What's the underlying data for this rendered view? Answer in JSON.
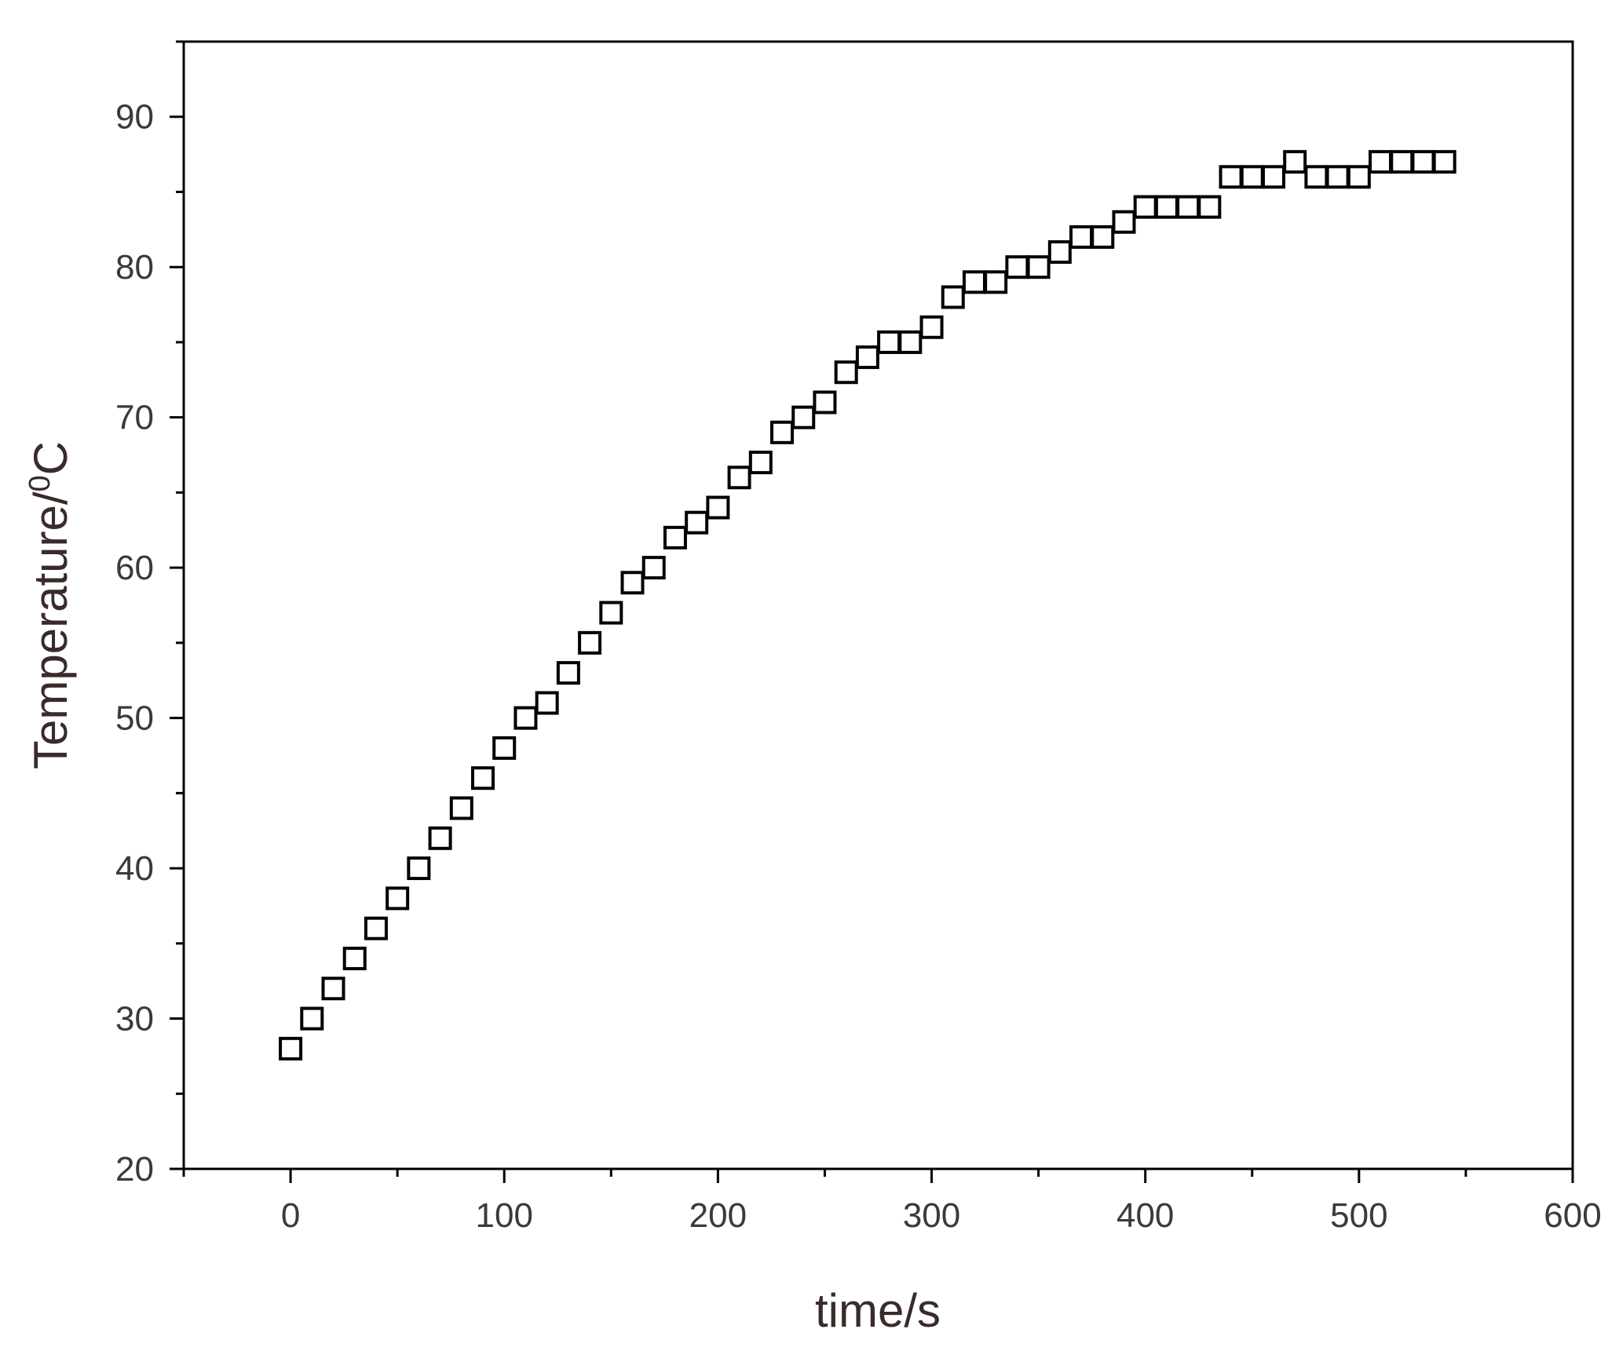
{
  "chart_data": {
    "type": "scatter",
    "xlabel": "time/s",
    "ylabel": {
      "main": "Temperature/",
      "superscript": "0",
      "unit": "C"
    },
    "xlim": [
      -50,
      600
    ],
    "ylim": [
      20,
      95
    ],
    "x_ticks": [
      0,
      100,
      200,
      300,
      400,
      500,
      600
    ],
    "y_ticks": [
      20,
      30,
      40,
      50,
      60,
      70,
      80,
      90
    ],
    "x_tick_labels": [
      "0",
      "100",
      "200",
      "300",
      "400",
      "500",
      "600"
    ],
    "y_tick_labels": [
      "20",
      "30",
      "40",
      "50",
      "60",
      "70",
      "80",
      "90"
    ],
    "marker": "open-square",
    "marker_color": "#000000",
    "grid": false,
    "legend": "none",
    "x": [
      0,
      10,
      20,
      30,
      40,
      50,
      60,
      70,
      80,
      90,
      100,
      110,
      120,
      130,
      140,
      150,
      160,
      170,
      180,
      190,
      200,
      210,
      220,
      230,
      240,
      250,
      260,
      270,
      280,
      290,
      300,
      310,
      320,
      330,
      340,
      350,
      360,
      370,
      380,
      390,
      400,
      410,
      420,
      430,
      440,
      450,
      460,
      470,
      480,
      490,
      500,
      510,
      520,
      530,
      540
    ],
    "y": [
      28,
      30,
      32,
      34,
      36,
      38,
      40,
      42,
      44,
      46,
      48,
      50,
      51,
      53,
      55,
      57,
      59,
      60,
      62,
      63,
      64,
      66,
      67,
      69,
      70,
      71,
      73,
      74,
      75,
      75,
      76,
      78,
      79,
      79,
      80,
      80,
      81,
      82,
      82,
      83,
      84,
      84,
      84,
      84,
      86,
      86,
      86,
      87,
      86,
      86,
      86,
      87,
      87,
      87,
      87
    ]
  }
}
